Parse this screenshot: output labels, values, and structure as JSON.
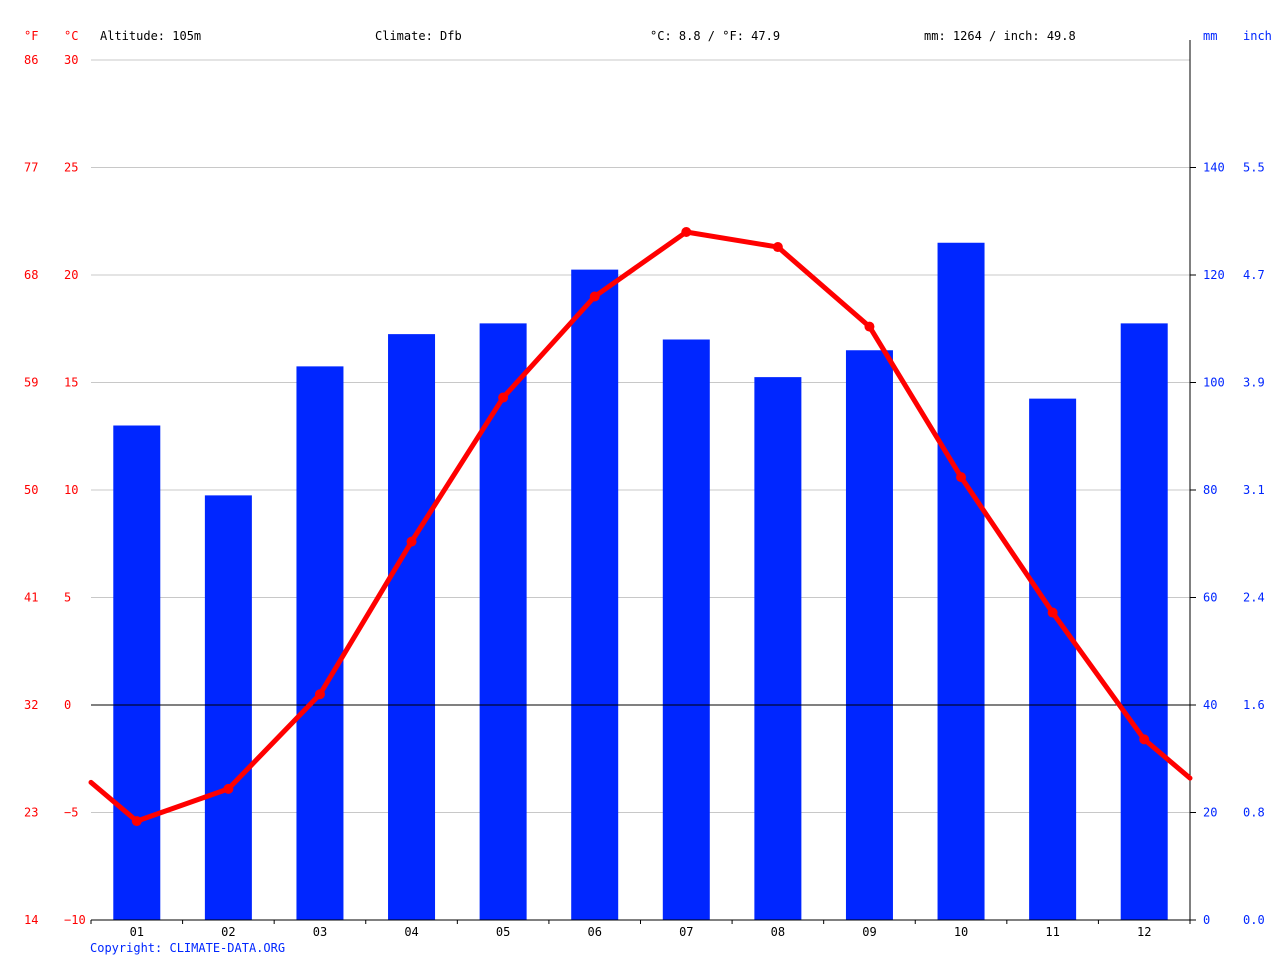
{
  "header": {
    "f_unit": "°F",
    "c_unit": "°C",
    "altitude": "Altitude: 105m",
    "climate": "Climate: Dfb",
    "temp_summary": "°C: 8.8 / °F: 47.9",
    "precip_summary": "mm: 1264 / inch: 49.8",
    "mm_unit": "mm",
    "inch_unit": "inch"
  },
  "copyright": "Copyright: CLIMATE-DATA.ORG",
  "colors": {
    "temperature": "#ff0000",
    "precipitation": "#0026ff",
    "grid": "#c8c8c8",
    "axis": "#000000"
  },
  "chart_data": {
    "type": "bar",
    "categories": [
      "01",
      "02",
      "03",
      "04",
      "05",
      "06",
      "07",
      "08",
      "09",
      "10",
      "11",
      "12"
    ],
    "series": [
      {
        "type": "bar",
        "axis": "right",
        "values": [
          92,
          79,
          103,
          109,
          111,
          121,
          108,
          101,
          106,
          126,
          97,
          111
        ]
      },
      {
        "type": "line",
        "axis": "left",
        "values": [
          -5.4,
          -3.9,
          0.5,
          7.6,
          14.3,
          19.0,
          22.0,
          21.3,
          17.6,
          10.6,
          4.3,
          -1.6
        ],
        "edge_values": [
          -3.6,
          -3.4
        ]
      }
    ],
    "y_left_c": {
      "min": -10,
      "max": 30,
      "ticks": [
        -10,
        -5,
        0,
        5,
        10,
        15,
        20,
        25,
        30
      ]
    },
    "y_left_f_ticks": [
      "14",
      "23",
      "32",
      "41",
      "50",
      "59",
      "68",
      "77",
      "86"
    ],
    "y_right_mm": {
      "min": 0,
      "max": 160,
      "ticks": [
        "0",
        "20",
        "40",
        "60",
        "80",
        "100",
        "120",
        "140"
      ]
    },
    "y_right_inch_ticks": [
      "0.0",
      "0.8",
      "1.6",
      "2.4",
      "3.1",
      "3.9",
      "4.7",
      "5.5"
    ],
    "grid": true
  }
}
